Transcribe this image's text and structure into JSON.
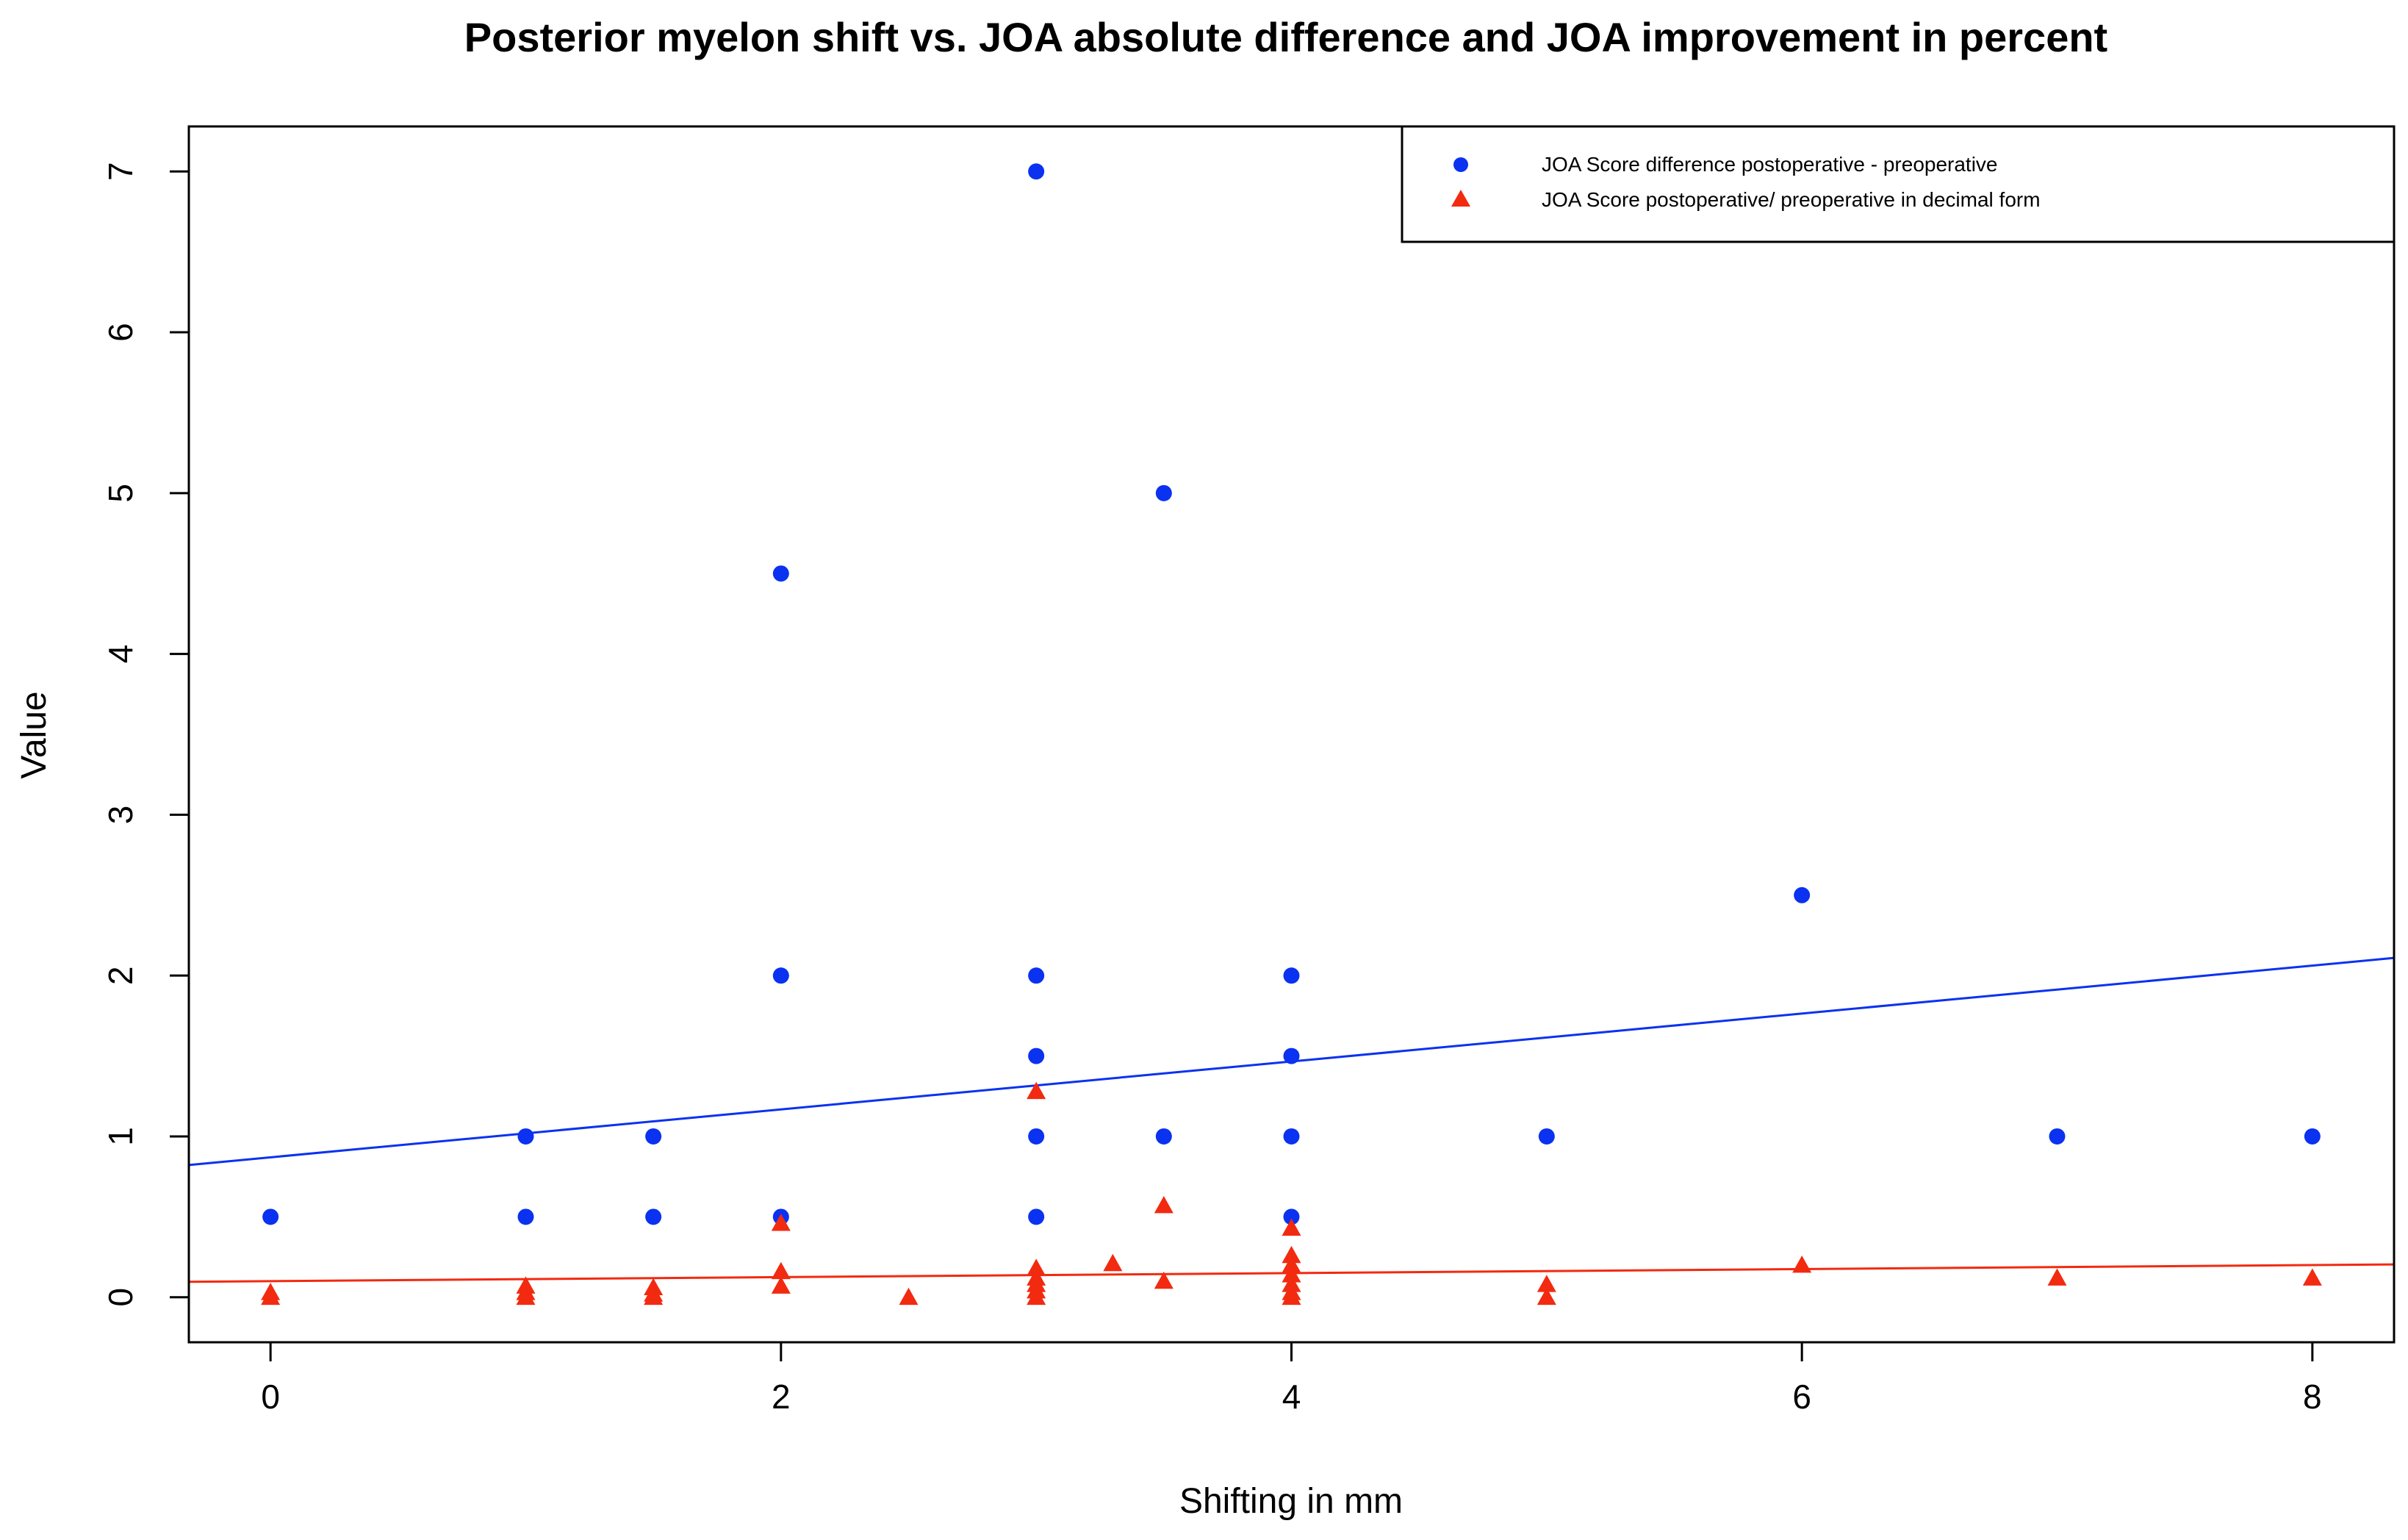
{
  "chart_data": {
    "type": "scatter",
    "title": "Posterior myelon shift vs. JOA absolute difference and JOA improvement in percent",
    "xlabel": "Shifting in mm",
    "ylabel": "Value",
    "xlim": [
      -0.32,
      8.32
    ],
    "ylim": [
      -0.28,
      7.28
    ],
    "x_ticks": [
      0,
      2,
      4,
      6,
      8
    ],
    "y_ticks": [
      0,
      1,
      2,
      3,
      4,
      5,
      6,
      7
    ],
    "grid": false,
    "legend_position": "top-right",
    "series": [
      {
        "name": "JOA Score difference postoperative - preoperative",
        "marker": "circle",
        "color": "#0a32f0",
        "points": [
          [
            0,
            0.5
          ],
          [
            1,
            1.0
          ],
          [
            1,
            0.5
          ],
          [
            1.5,
            1.0
          ],
          [
            1.5,
            0.5
          ],
          [
            2,
            4.5
          ],
          [
            2,
            2.0
          ],
          [
            2,
            0.5
          ],
          [
            3,
            7.0
          ],
          [
            3,
            2.0
          ],
          [
            3,
            1.5
          ],
          [
            3,
            1.0
          ],
          [
            3,
            0.5
          ],
          [
            3.5,
            5.0
          ],
          [
            3.5,
            1.0
          ],
          [
            4,
            2.0
          ],
          [
            4,
            1.5
          ],
          [
            4,
            1.0
          ],
          [
            4,
            0.5
          ],
          [
            5,
            1.0
          ],
          [
            6,
            2.5
          ],
          [
            7,
            1.0
          ],
          [
            8,
            1.0
          ]
        ],
        "fit_line": {
          "intercept": 0.87,
          "slope": 0.149
        }
      },
      {
        "name": "JOA Score postoperative/ preoperative in decimal form",
        "marker": "triangle",
        "color": "#f22a10",
        "points": [
          [
            0,
            0.03
          ],
          [
            0,
            0.0
          ],
          [
            1,
            0.07
          ],
          [
            1,
            0.03
          ],
          [
            1,
            0.0
          ],
          [
            1.5,
            0.06
          ],
          [
            1.5,
            0.02
          ],
          [
            1.5,
            0.0
          ],
          [
            2,
            0.46
          ],
          [
            2,
            0.16
          ],
          [
            2,
            0.07
          ],
          [
            2.5,
            0.0
          ],
          [
            3,
            1.28
          ],
          [
            3,
            0.18
          ],
          [
            3,
            0.12
          ],
          [
            3,
            0.08
          ],
          [
            3,
            0.04
          ],
          [
            3,
            0.0
          ],
          [
            3.3,
            0.21
          ],
          [
            3.5,
            0.57
          ],
          [
            3.5,
            0.1
          ],
          [
            4,
            0.43
          ],
          [
            4,
            0.26
          ],
          [
            4,
            0.2
          ],
          [
            4,
            0.14
          ],
          [
            4,
            0.08
          ],
          [
            4,
            0.03
          ],
          [
            4,
            0.0
          ],
          [
            5,
            0.08
          ],
          [
            5,
            0.0
          ],
          [
            6,
            0.2
          ],
          [
            7,
            0.12
          ],
          [
            8,
            0.12
          ]
        ],
        "fit_line": {
          "intercept": 0.1,
          "slope": 0.0125
        }
      }
    ]
  }
}
